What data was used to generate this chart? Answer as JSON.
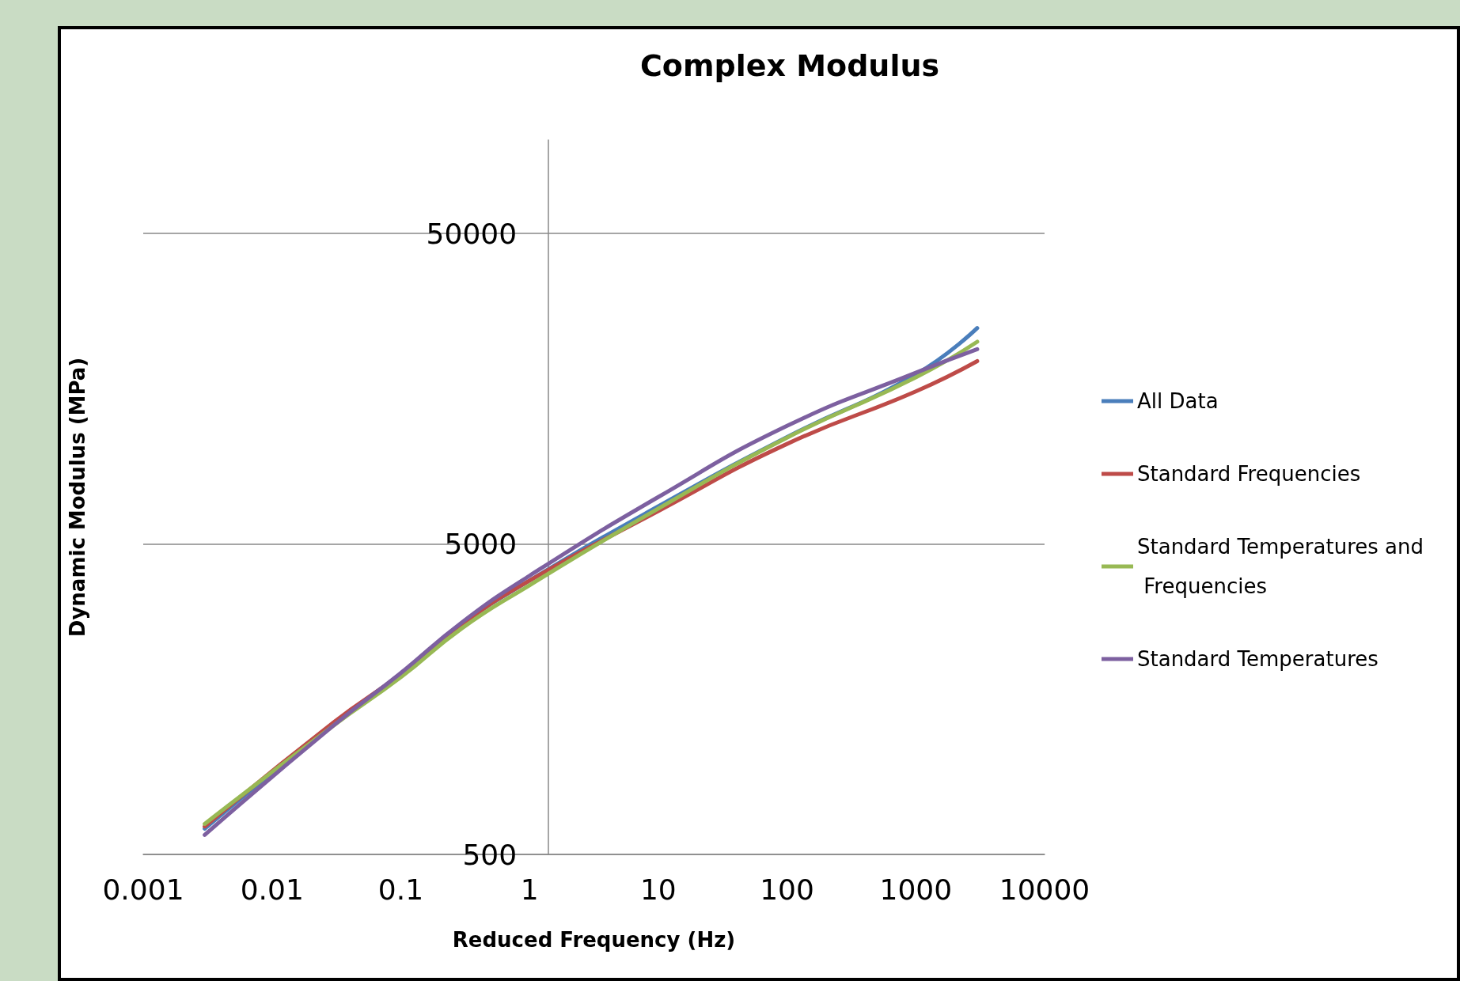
{
  "chart_data": {
    "type": "line",
    "title": "Complex Modulus",
    "xlabel": "Reduced Frequency (Hz)",
    "ylabel": "Dynamic Modulus (MPa)",
    "log": "xy",
    "xlim": [
      0.001,
      10000
    ],
    "xticks": [
      0.001,
      0.01,
      0.1,
      1,
      10,
      100,
      1000,
      10000
    ],
    "ylim": [
      500,
      100000
    ],
    "yticks": [
      500,
      5000,
      50000
    ],
    "grid": "y",
    "legend": "right",
    "marker": "none",
    "line_style": "solid",
    "x": [
      0.003,
      0.03,
      0.1,
      0.3,
      1,
      10,
      100,
      1000,
      3000
    ],
    "series": [
      {
        "name": "All Data",
        "color": "#4a7ebb",
        "values": [
          605,
          1318,
          1905,
          2760,
          3810,
          6610,
          11050,
          17600,
          24800
        ]
      },
      {
        "name": "Standard Frequencies",
        "color": "#be4b48",
        "values": [
          615,
          1330,
          1905,
          2760,
          3810,
          6380,
          10500,
          15500,
          19400
        ]
      },
      {
        "name": "Standard Temperatures and Frequencies",
        "color": "#98b954",
        "values": [
          627,
          1300,
          1860,
          2680,
          3680,
          6500,
          11000,
          17200,
          22400
        ]
      },
      {
        "name": "Standard Temperatures",
        "color": "#7d60a0",
        "values": [
          578,
          1300,
          1920,
          2800,
          3950,
          7080,
          12000,
          17800,
          21200
        ]
      }
    ]
  }
}
